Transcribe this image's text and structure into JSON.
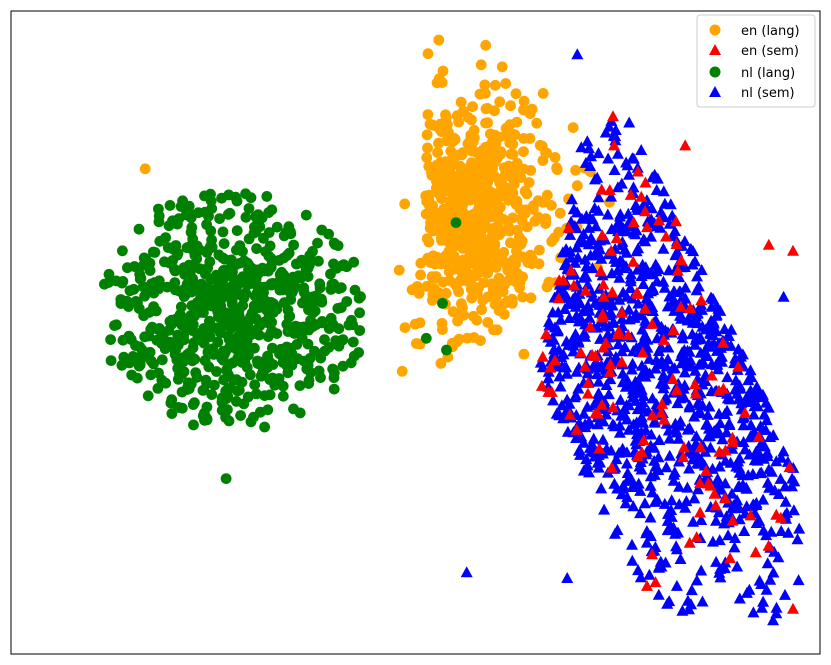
{
  "chart_data": {
    "type": "scatter",
    "title": "",
    "xlabel": "",
    "ylabel": "",
    "axes_ticks": "none",
    "grid": false,
    "legend_position": "top-right",
    "xlim": [
      -60,
      60
    ],
    "ylim": [
      -55,
      55
    ],
    "series": [
      {
        "name": "en (lang)",
        "marker": "circle",
        "color": "#FFA500",
        "cluster": {
          "cx": 12,
          "cy": 21,
          "sx": 7.0,
          "sy": 10.0,
          "n": 650,
          "seed": 11
        },
        "points": [
          [
            -40.1,
            28.0
          ],
          [
            -1.6,
            22.0
          ],
          [
            9.1,
            2.1
          ],
          [
            17.3,
            38.2
          ],
          [
            2.5,
            5.5
          ]
        ]
      },
      {
        "name": "en (sem)",
        "marker": "triangle",
        "color": "#FF0000",
        "cluster": {
          "cx": 31,
          "cy": -1,
          "sx": 14.0,
          "sy": 24.0,
          "n": 120,
          "seed": 23
        },
        "points": [
          [
            56.0,
            14.0
          ],
          [
            52.4,
            15.0
          ],
          [
            29.3,
            37.0
          ],
          [
            20.0,
            -6.0
          ],
          [
            40.0,
            32.0
          ]
        ]
      },
      {
        "name": "nl (lang)",
        "marker": "circle",
        "color": "#008000",
        "cluster": {
          "cx": -27,
          "cy": 4,
          "sx": 10.0,
          "sy": 10.5,
          "n": 700,
          "seed": 37
        },
        "points": [
          [
            -28.1,
            -25.0
          ],
          [
            6.0,
            18.8
          ],
          [
            4.6,
            -3.0
          ],
          [
            1.6,
            -1.0
          ],
          [
            4.0,
            5.0
          ]
        ]
      },
      {
        "name": "nl (sem)",
        "marker": "triangle",
        "color": "#0000FF",
        "cluster": {
          "cx": 31,
          "cy": 0,
          "sx": 14.0,
          "sy": 24.0,
          "n": 1050,
          "seed": 53
        },
        "points": [
          [
            24.0,
            47.6
          ],
          [
            54.6,
            6.1
          ],
          [
            7.6,
            -41.0
          ],
          [
            52.0,
            -12.0
          ],
          [
            22.5,
            -42.0
          ]
        ]
      }
    ]
  }
}
